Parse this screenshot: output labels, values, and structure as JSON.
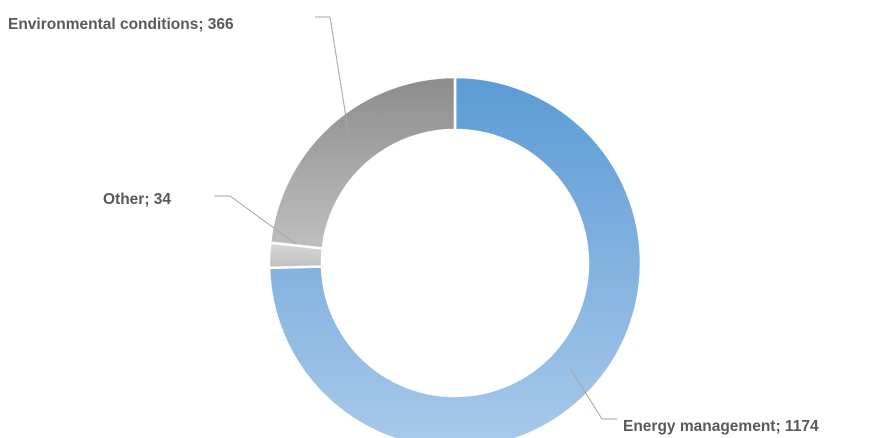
{
  "chart_data": {
    "type": "pie",
    "donut": true,
    "title": "",
    "legend": "none",
    "slices": [
      {
        "category": "Energy management",
        "value": 1174,
        "label": "Energy management; 1174",
        "color_top": "#5b9bd5",
        "color_bottom": "#a9c9ea"
      },
      {
        "category": "Other",
        "value": 34,
        "label": "Other; 34",
        "color_top": "#d9d9d9",
        "color_bottom": "#bfbfbf"
      },
      {
        "category": "Environmental conditions",
        "value": 366,
        "label": "Environmental conditions; 366",
        "color_top": "#8c8c8c",
        "color_bottom": "#bfbfbf"
      }
    ]
  },
  "colors": {
    "label_text": "#595959",
    "leader_line": "#a6a6a6",
    "slice_border": "#ffffff"
  }
}
